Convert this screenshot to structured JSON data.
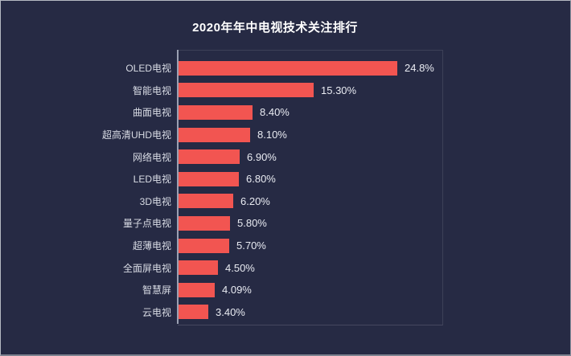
{
  "title": "2020年年中电视技术关注排行",
  "colors": {
    "background": "#262a44",
    "bar": "#f25551",
    "title_text": "#ffffff",
    "category_text": "#d9dce5",
    "value_text": "#e9ebf2",
    "axis_line": "#9aa0b2"
  },
  "chart_data": {
    "type": "bar",
    "orientation": "horizontal",
    "title": "2020年年中电视技术关注排行",
    "categories": [
      "OLED电视",
      "智能电视",
      "曲面电视",
      "超高清UHD电视",
      "网络电视",
      "LED电视",
      "3D电视",
      "量子点电视",
      "超薄电视",
      "全面屏电视",
      "智慧屏",
      "云电视"
    ],
    "values": [
      24.8,
      15.3,
      8.4,
      8.1,
      6.9,
      6.8,
      6.2,
      5.8,
      5.7,
      4.5,
      4.09,
      3.4
    ],
    "value_labels": [
      "24.8%",
      "15.30%",
      "8.40%",
      "8.10%",
      "6.90%",
      "6.80%",
      "6.20%",
      "5.80%",
      "5.70%",
      "4.50%",
      "4.09%",
      "3.40%"
    ],
    "xlabel": "",
    "ylabel": "",
    "xlim": [
      0,
      26.8
    ],
    "sort": "descending",
    "grid": "off",
    "legend": "none",
    "value_labels_position": "outside-end"
  }
}
